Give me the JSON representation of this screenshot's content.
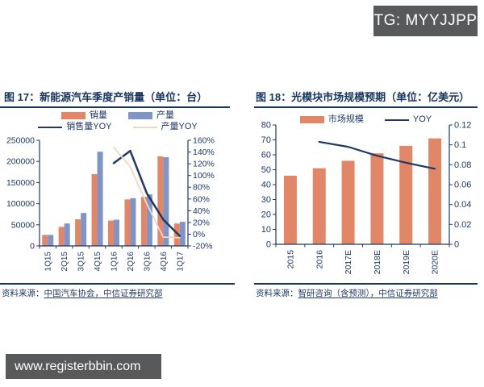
{
  "badge": {
    "text": "TG: MYYJJPP",
    "bg": "#58595B",
    "fg": "#ffffff"
  },
  "watermark": {
    "text": "www.registerbbin.com",
    "bg": "#58595B",
    "fg": "#ffffff"
  },
  "colors": {
    "navy": "#1F3864",
    "title_navy": "#17365D",
    "orange": "#E18767",
    "blue": "#8194C6",
    "tan": "#EFD9C0",
    "axis": "#1F3864"
  },
  "chart_data": [
    {
      "type": "bar",
      "title": "图 17：新能源汽车季度产销量（单位：台）",
      "categories": [
        "1Q15",
        "2Q15",
        "3Q15",
        "4Q15",
        "1Q16",
        "2Q16",
        "3Q16",
        "4Q16",
        "1Q17"
      ],
      "bar_series": [
        {
          "name": "销量",
          "color": "#E18767",
          "values": [
            26000,
            45000,
            63000,
            170000,
            60000,
            110000,
            116000,
            212000,
            53000
          ]
        },
        {
          "name": "产量",
          "color": "#8194C6",
          "values": [
            26000,
            53000,
            78000,
            223000,
            62000,
            113000,
            122000,
            210000,
            57000
          ]
        }
      ],
      "line_series": [
        {
          "name": "销售量YOY",
          "axis": "right",
          "color": "#1F3864",
          "stroke_width": 2.5,
          "values": [
            null,
            null,
            null,
            null,
            121,
            142,
            70,
            25,
            -3
          ]
        },
        {
          "name": "产量YOY",
          "axis": "right",
          "color": "#EFD9C0",
          "stroke_width": 1.8,
          "values": [
            null,
            null,
            null,
            null,
            148,
            115,
            52,
            -5,
            -6
          ]
        }
      ],
      "left_axis": {
        "min": 0,
        "max": 250000,
        "ticks": [
          0,
          50000,
          100000,
          150000,
          200000,
          250000
        ],
        "labels": [
          "0",
          "50000",
          "100000",
          "150000",
          "200000",
          "250000"
        ]
      },
      "right_axis": {
        "min": -20,
        "max": 160,
        "ticks": [
          -20,
          0,
          20,
          40,
          60,
          80,
          100,
          120,
          140,
          160
        ],
        "labels": [
          "-20%",
          "0%",
          "20%",
          "40%",
          "60%",
          "80%",
          "100%",
          "120%",
          "140%",
          "160%"
        ]
      },
      "grid": false,
      "legend_position": "top",
      "legend": {
        "sales": "销量",
        "production": "产量",
        "sales_yoy": "销售量YOY",
        "production_yoy": "产量YOY"
      },
      "source_label": "资料来源：",
      "source_value": "中国汽车协会，中信证券研究部"
    },
    {
      "type": "bar",
      "title": "图 18：光模块市场规模预期（单位：亿美元）",
      "categories": [
        "2015",
        "2016",
        "2017E",
        "2018E",
        "2019E",
        "2020E"
      ],
      "bar_series": [
        {
          "name": "市场规模",
          "color": "#E18767",
          "values": [
            46,
            51,
            56,
            61,
            66,
            71
          ]
        }
      ],
      "line_series": [
        {
          "name": "YOY",
          "axis": "right",
          "color": "#1F3864",
          "stroke_width": 2.2,
          "values": [
            null,
            0.103,
            0.098,
            0.089,
            0.082,
            0.076
          ]
        }
      ],
      "left_axis": {
        "min": 0,
        "max": 80,
        "ticks": [
          0,
          10,
          20,
          30,
          40,
          50,
          60,
          70,
          80
        ],
        "labels": [
          "0",
          "10",
          "20",
          "30",
          "40",
          "50",
          "60",
          "70",
          "80"
        ]
      },
      "right_axis": {
        "min": 0,
        "max": 0.12,
        "ticks": [
          0,
          0.02,
          0.04,
          0.06,
          0.08,
          0.1,
          0.12
        ],
        "labels": [
          "0",
          "0.02",
          "0.04",
          "0.06",
          "0.08",
          "0.1",
          "0.12"
        ]
      },
      "grid": false,
      "legend_position": "top",
      "legend": {
        "market": "市场规模",
        "yoy": "YOY"
      },
      "source_label": "资料来源：",
      "source_value": "智研咨询（含预测），中信证券研究部"
    }
  ]
}
